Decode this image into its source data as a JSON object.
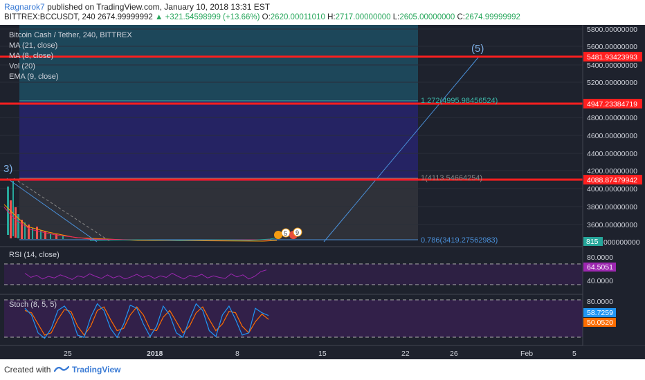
{
  "header": {
    "user": "Ragnarok7",
    "published": "published on TradingView.com, January 10, 2018 13:31 EST",
    "symbol": "BITTREX:BCCUSDT, 240",
    "last": "2674.99999992",
    "change": "▲ +321.54598999 (+13.66%)",
    "o_label": "O:",
    "o": "2620.00011010",
    "h_label": "H:",
    "h": "2717.00000000",
    "l_label": "L:",
    "l": "2605.00000000",
    "c_label": "C:",
    "c": "2674.99999992"
  },
  "legend": {
    "title": "Bitcoin Cash / Tether, 240, BITTREX",
    "ma21": "MA (21, close)",
    "ma8": "MA (8, close)",
    "vol": "Vol (20)",
    "ema": "EMA (9, close)"
  },
  "fib": {
    "l1272": "1.272(4995.98456524)",
    "l1": "1(4113.54664254)",
    "l0786": "0.786(3419.27562983)"
  },
  "wave": {
    "w3": "3)",
    "w5": "(5)"
  },
  "events": {
    "e1": "5",
    "e2": "9"
  },
  "rsi": {
    "label": "RSI (14, close)",
    "value": "64.5051",
    "upper": "80.0000",
    "lower": "40.0000"
  },
  "stoch": {
    "label": "Stoch (8, 5, 5)",
    "k": "58.7259",
    "d": "50.0520",
    "upper": "80.0000"
  },
  "price_axis": {
    "ticks": [
      "5800.00000000",
      "5600.00000000",
      "5400.00000000",
      "5200.00000000",
      "4800.00000000",
      "4600.00000000",
      "4400.00000000",
      "4200.00000000",
      "4000.00000000",
      "3800.00000000",
      "3600.00000000",
      "000000000"
    ],
    "red_labels": [
      "5481.93423993",
      "4947.23384719",
      "4088.87479942"
    ],
    "current": "815"
  },
  "time_axis": [
    "25",
    "2018",
    "8",
    "15",
    "22",
    "26",
    "Feb",
    "5"
  ],
  "footer": {
    "created": "Created with",
    "brand": "TradingView"
  },
  "colors": {
    "background": "#1e222d",
    "resistance": "#ff1f1f",
    "rsi": "#9c27b0",
    "stoch_k": "#2196f3",
    "stoch_d": "#ff6d00",
    "fib_zone_top": "#1d4e63",
    "fib_zone_mid": "#262466"
  },
  "chart_data": {
    "type": "line",
    "title": "Bitcoin Cash / Tether, 240, BITTREX",
    "ylim": [
      3420,
      5860
    ],
    "horizontal_levels": [
      5481.93423993,
      4947.23384719,
      4088.87479942
    ],
    "fib_levels": [
      {
        "ratio": 1.272,
        "price": 4995.98456524
      },
      {
        "ratio": 1,
        "price": 4113.54664254
      },
      {
        "ratio": 0.786,
        "price": 3419.27562983
      }
    ],
    "rsi": {
      "ylim": [
        20,
        100
      ],
      "last": 64.5051,
      "bands": [
        80,
        40
      ],
      "values": [
        58,
        50,
        54,
        47,
        52,
        49,
        55,
        51,
        46,
        53,
        50,
        57,
        52,
        48,
        55,
        49,
        53,
        47,
        51,
        56,
        50,
        54,
        48,
        53,
        50,
        58,
        52,
        47,
        54,
        51,
        56,
        49,
        53,
        50,
        48,
        57,
        51,
        55,
        47,
        52,
        61,
        64.5
      ]
    },
    "stoch": {
      "ylim": [
        -5,
        100
      ],
      "upper": 80,
      "k": [
        75,
        60,
        20,
        8,
        30,
        70,
        80,
        60,
        15,
        10,
        55,
        85,
        70,
        30,
        10,
        40,
        82,
        75,
        40,
        12,
        35,
        80,
        60,
        20,
        10,
        50,
        85,
        70,
        25,
        12,
        60,
        80,
        50,
        15,
        20,
        75,
        65,
        58.7
      ],
      "d": [
        70,
        65,
        40,
        15,
        20,
        50,
        72,
        68,
        35,
        15,
        35,
        70,
        78,
        50,
        25,
        30,
        60,
        78,
        60,
        28,
        25,
        55,
        70,
        45,
        20,
        35,
        65,
        78,
        50,
        25,
        40,
        68,
        65,
        35,
        20,
        45,
        62,
        50.1
      ]
    }
  }
}
